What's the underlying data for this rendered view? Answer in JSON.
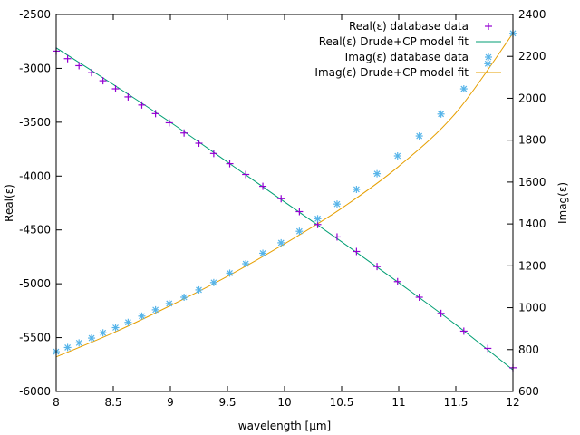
{
  "chart_data": {
    "type": "scatter",
    "xlabel": "wavelength [µm]",
    "ylabel": "Real(ε)",
    "y2label": "Imag(ε)",
    "xlim": [
      8,
      12
    ],
    "ylim": [
      -6000,
      -2500
    ],
    "y2lim": [
      600,
      2400
    ],
    "xticks": [
      "8",
      "8.5",
      "9",
      "9.5",
      "10",
      "10.5",
      "11",
      "11.5",
      "12"
    ],
    "xtick_values": [
      8,
      8.5,
      9,
      9.5,
      10,
      10.5,
      11,
      11.5,
      12
    ],
    "yticks": [
      "-6000",
      "-5500",
      "-5000",
      "-4500",
      "-4000",
      "-3500",
      "-3000",
      "-2500"
    ],
    "ytick_values": [
      -6000,
      -5500,
      -5000,
      -4500,
      -4000,
      -3500,
      -3000,
      -2500
    ],
    "y2ticks": [
      "600",
      "800",
      "1000",
      "1200",
      "1400",
      "1600",
      "1800",
      "2000",
      "2200",
      "2400"
    ],
    "y2tick_values": [
      600,
      800,
      1000,
      1200,
      1400,
      1600,
      1800,
      2000,
      2200,
      2400
    ],
    "grid": false,
    "legend_position": "top-right",
    "series": [
      {
        "name": "Real(ε) database data",
        "axis": "y",
        "kind": "points",
        "marker": "plus",
        "color": "#9400d3",
        "x": [
          8.0,
          8.1,
          8.2,
          8.31,
          8.41,
          8.52,
          8.63,
          8.75,
          8.87,
          8.99,
          9.12,
          9.25,
          9.38,
          9.52,
          9.66,
          9.81,
          9.97,
          10.13,
          10.29,
          10.46,
          10.63,
          10.81,
          10.99,
          11.18,
          11.37,
          11.57,
          11.78,
          12.0
        ],
        "y": [
          -2840,
          -2910,
          -2975,
          -3040,
          -3115,
          -3190,
          -3265,
          -3340,
          -3420,
          -3505,
          -3600,
          -3695,
          -3790,
          -3885,
          -3985,
          -4095,
          -4210,
          -4330,
          -4450,
          -4565,
          -4700,
          -4840,
          -4980,
          -5125,
          -5275,
          -5440,
          -5600,
          -5780
        ]
      },
      {
        "name": "Real(ε) Drude+CP model fit",
        "axis": "y",
        "kind": "line",
        "color": "#009e73",
        "x": [
          8.0,
          8.5,
          9.0,
          9.5,
          10.0,
          10.5,
          11.0,
          11.5,
          12.0
        ],
        "y": [
          -2810,
          -3150,
          -3500,
          -3870,
          -4240,
          -4610,
          -4990,
          -5380,
          -5800
        ]
      },
      {
        "name": "Imag(ε) database data",
        "axis": "y2",
        "kind": "points",
        "marker": "star",
        "color": "#56b4e9",
        "x": [
          8.0,
          8.1,
          8.2,
          8.31,
          8.41,
          8.52,
          8.63,
          8.75,
          8.87,
          8.99,
          9.12,
          9.25,
          9.38,
          9.52,
          9.66,
          9.81,
          9.97,
          10.13,
          10.29,
          10.46,
          10.63,
          10.81,
          10.99,
          11.18,
          11.37,
          11.57,
          11.78,
          12.0
        ],
        "y": [
          790,
          810,
          832,
          855,
          880,
          905,
          930,
          960,
          990,
          1020,
          1050,
          1085,
          1120,
          1165,
          1210,
          1260,
          1310,
          1365,
          1425,
          1495,
          1565,
          1640,
          1725,
          1820,
          1925,
          2045,
          2165,
          2310
        ]
      },
      {
        "name": "Imag(ε) Drude+CP model fit",
        "axis": "y2",
        "kind": "line",
        "color": "#e69f00",
        "x": [
          8.0,
          8.5,
          9.0,
          9.5,
          10.0,
          10.5,
          11.0,
          11.5,
          12.0
        ],
        "y": [
          765,
          880,
          1010,
          1150,
          1305,
          1475,
          1675,
          1930,
          2310
        ]
      }
    ]
  }
}
